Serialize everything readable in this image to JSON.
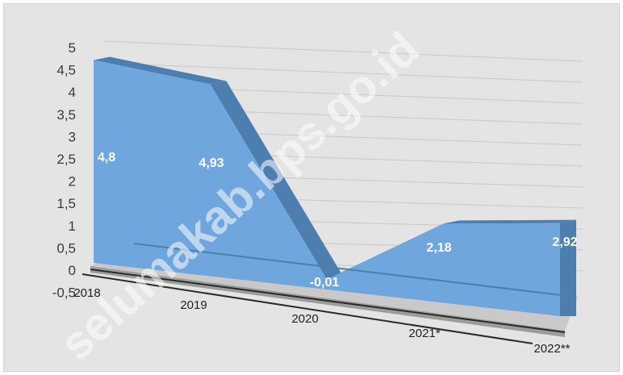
{
  "chart_data": {
    "type": "area",
    "categories": [
      "2018",
      "2019",
      "2020",
      "2021*",
      "2022**"
    ],
    "values": [
      4.8,
      4.93,
      -0.01,
      2.18,
      2.92
    ],
    "data_labels": [
      "4,8",
      "4,93",
      "-0,01",
      "2,18",
      "2,92"
    ],
    "y_ticks": [
      "-0,5",
      "0",
      "0,5",
      "1",
      "1,5",
      "2",
      "2,5",
      "3",
      "3,5",
      "4",
      "4,5",
      "5"
    ],
    "ylim": [
      -0.5,
      5
    ],
    "grid": true,
    "style": "3d",
    "colors": {
      "fill": "#6fa6dd",
      "side": "#4d7eb0",
      "background": "#e4e4e4",
      "grid": "#c8c8c8"
    },
    "title": "",
    "xlabel": "",
    "ylabel": ""
  },
  "watermark": "selumakab.bps.go.id"
}
